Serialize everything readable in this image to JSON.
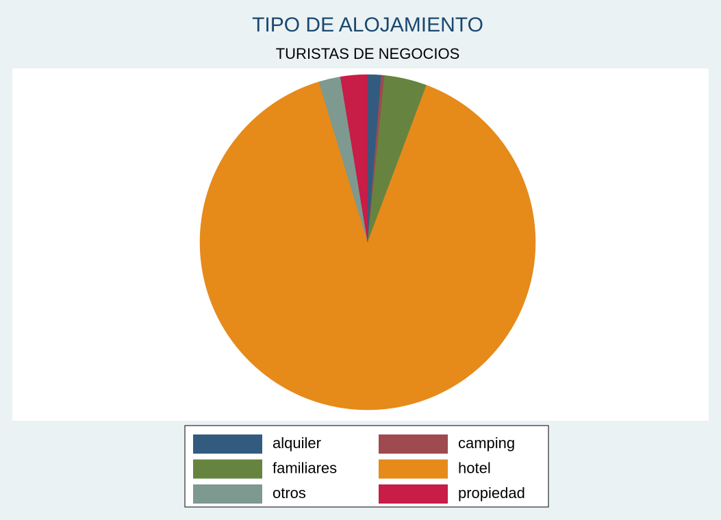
{
  "chart_data": {
    "type": "pie",
    "title": "TIPO DE ALOJAMIENTO",
    "subtitle": "TURISTAS DE NEGOCIOS",
    "categories": [
      "alquiler",
      "camping",
      "familiares",
      "hotel",
      "otros",
      "propiedad"
    ],
    "values": [
      1.3,
      0.3,
      4.1,
      89.6,
      2.1,
      2.6
    ],
    "colors": [
      "#335b80",
      "#9e4a4f",
      "#66843f",
      "#e68a1a",
      "#7d9990",
      "#c71d47"
    ],
    "legend": "bottom"
  }
}
